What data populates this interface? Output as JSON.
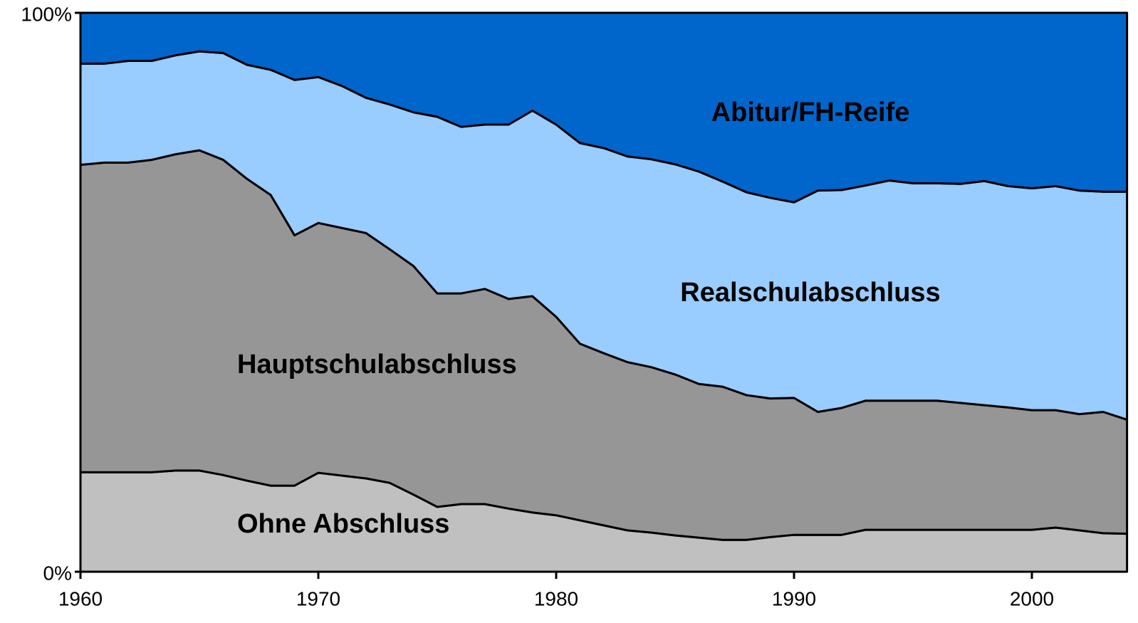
{
  "chart_data": {
    "type": "stacked_area",
    "x": [
      1960,
      1961,
      1962,
      1963,
      1964,
      1965,
      1966,
      1967,
      1968,
      1969,
      1970,
      1971,
      1972,
      1973,
      1974,
      1975,
      1976,
      1977,
      1978,
      1979,
      1980,
      1981,
      1982,
      1983,
      1984,
      1985,
      1986,
      1987,
      1988,
      1989,
      1990,
      1991,
      1992,
      1993,
      1994,
      1995,
      1996,
      1997,
      1998,
      1999,
      2000,
      2001,
      2002,
      2003,
      2004
    ],
    "series": [
      {
        "name": "Ohne Abschluss",
        "color": "#c0c0c0",
        "values": [
          17.8,
          17.8,
          17.8,
          17.8,
          18.1,
          18.1,
          17.3,
          16.3,
          15.4,
          15.4,
          17.7,
          17.2,
          16.7,
          15.9,
          13.8,
          11.6,
          12.1,
          12.1,
          11.3,
          10.6,
          10.1,
          9.2,
          8.3,
          7.4,
          7.0,
          6.5,
          6.1,
          5.7,
          5.7,
          6.2,
          6.6,
          6.6,
          6.6,
          7.5,
          7.5,
          7.5,
          7.5,
          7.5,
          7.5,
          7.5,
          7.5,
          7.9,
          7.4,
          6.9,
          6.8
        ]
      },
      {
        "name": "Hauptschulabschluss",
        "color": "#969696",
        "values": [
          55.0,
          55.4,
          55.4,
          55.9,
          56.6,
          57.3,
          56.4,
          54.0,
          52.0,
          44.8,
          44.7,
          44.3,
          43.9,
          41.8,
          40.9,
          38.2,
          37.7,
          38.5,
          37.5,
          38.7,
          35.5,
          31.6,
          30.8,
          30.1,
          29.6,
          28.8,
          27.5,
          27.4,
          25.9,
          24.8,
          24.5,
          22.0,
          22.7,
          23.1,
          23.1,
          23.1,
          23.1,
          22.7,
          22.3,
          21.9,
          21.4,
          21.0,
          20.8,
          21.7,
          20.4
        ]
      },
      {
        "name": "Realschulabschluss",
        "color": "#99ccff",
        "values": [
          18.1,
          17.7,
          18.2,
          17.7,
          17.7,
          17.7,
          19.1,
          20.4,
          22.4,
          27.8,
          26.1,
          25.4,
          24.2,
          25.9,
          27.5,
          31.6,
          29.8,
          29.4,
          31.2,
          33.2,
          34.4,
          35.9,
          36.7,
          36.8,
          37.2,
          37.6,
          38.0,
          36.7,
          36.3,
          35.9,
          35.0,
          39.6,
          39.0,
          38.5,
          39.4,
          38.9,
          38.9,
          39.2,
          40.1,
          39.6,
          39.7,
          40.1,
          40.0,
          39.4,
          40.8
        ]
      },
      {
        "name": "Abitur/FH-Reife",
        "color": "#0066cc",
        "values": [
          9.1,
          9.1,
          8.6,
          8.6,
          7.6,
          6.9,
          7.2,
          9.3,
          10.2,
          12.0,
          11.5,
          13.1,
          15.2,
          16.4,
          17.8,
          18.6,
          20.4,
          20.0,
          20.0,
          17.5,
          20.0,
          23.3,
          24.2,
          25.7,
          26.2,
          27.1,
          28.4,
          30.2,
          32.1,
          33.1,
          33.9,
          31.8,
          31.7,
          30.9,
          30.0,
          30.5,
          30.5,
          30.6,
          30.1,
          31.0,
          31.4,
          31.0,
          31.8,
          32.0,
          32.0
        ]
      }
    ],
    "xlim": [
      1960,
      2004
    ],
    "xticks": [
      1960,
      1970,
      1980,
      1990,
      2000
    ],
    "ylim": [
      0,
      100
    ],
    "yticks": [
      {
        "value": 0,
        "label": "0%"
      },
      {
        "value": 100,
        "label": "100%"
      }
    ]
  }
}
